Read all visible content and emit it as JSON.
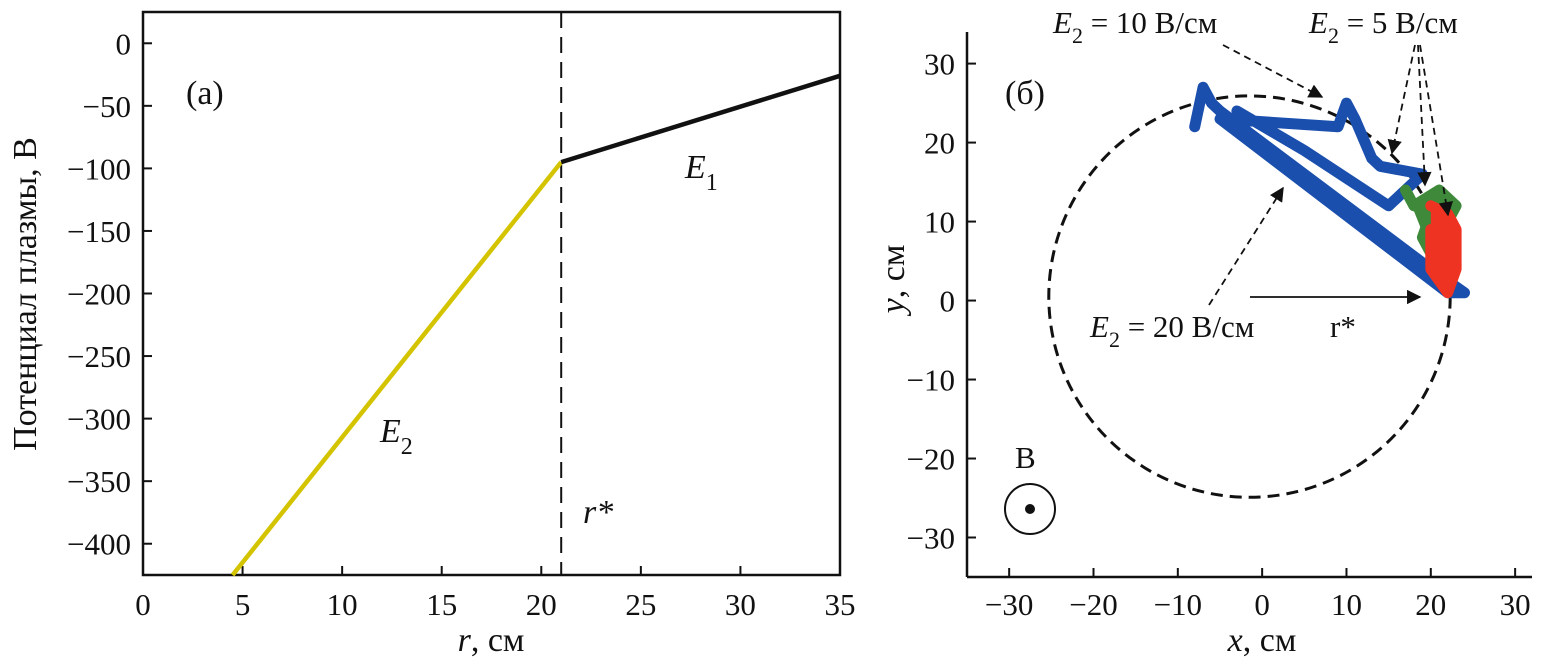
{
  "chart_data": [
    {
      "type": "line",
      "panel_label": "(a)",
      "xlabel_var": "r",
      "xlabel_unit": ", см",
      "ylabel": "Потенциал плазмы, В",
      "xlim": [
        0,
        35
      ],
      "ylim": [
        -425,
        25
      ],
      "xticks": [
        0,
        5,
        10,
        15,
        20,
        25,
        30,
        35
      ],
      "yticks": [
        0,
        -50,
        -100,
        -150,
        -200,
        -250,
        -300,
        -350,
        -400
      ],
      "series": [
        {
          "name": "E2",
          "color": "#d4c400",
          "x": [
            4.5,
            21
          ],
          "y": [
            -425,
            -95
          ]
        },
        {
          "name": "E1",
          "color": "#111111",
          "x": [
            21,
            35
          ],
          "y": [
            -95,
            -26
          ]
        }
      ],
      "vline": {
        "x": 21,
        "label": "r*"
      },
      "label_E1": {
        "base": "E",
        "sub": "1"
      },
      "label_E2": {
        "base": "E",
        "sub": "2"
      }
    },
    {
      "type": "scatter",
      "panel_label": "(б)",
      "xlabel_var": "x",
      "xlabel_unit": ", см",
      "ylabel_var": "y",
      "ylabel_unit": ", см",
      "xlim": [
        -35,
        32
      ],
      "ylim": [
        -35,
        34
      ],
      "xticks": [
        -30,
        -20,
        -10,
        0,
        10,
        20,
        30
      ],
      "yticks": [
        30,
        20,
        10,
        0,
        -10,
        -20,
        -30
      ],
      "circle": {
        "cx": -1.5,
        "cy": 0.5,
        "r": 23.8
      },
      "trajectories": [
        {
          "name": "E2 = 20 В/см",
          "color": "#1a4fae",
          "points": [
            [
              -8,
              22
            ],
            [
              -7,
              27
            ],
            [
              -6,
              25
            ],
            [
              -5,
              24
            ],
            [
              20,
              4
            ],
            [
              24,
              1
            ],
            [
              22,
              1
            ],
            [
              -5,
              23
            ],
            [
              9,
              22
            ],
            [
              10,
              25
            ],
            [
              11,
              23
            ],
            [
              13,
              18
            ],
            [
              14,
              17
            ],
            [
              19,
              16
            ],
            [
              17,
              14
            ],
            [
              15,
              12
            ],
            [
              5,
              19
            ],
            [
              -3,
              24
            ]
          ]
        },
        {
          "name": "E2 = 10 В/см",
          "color": "#3e8a3a",
          "points": [
            [
              17,
              14
            ],
            [
              18,
              12
            ],
            [
              21,
              14
            ],
            [
              23,
              12
            ],
            [
              22,
              10
            ],
            [
              20,
              11
            ],
            [
              19,
              8
            ],
            [
              20,
              6
            ]
          ]
        },
        {
          "name": "E2 = 5 В/см",
          "color": "#ee3322",
          "points": [
            [
              20,
              12
            ],
            [
              22,
              11
            ],
            [
              23,
              9
            ],
            [
              23,
              4
            ],
            [
              22,
              1
            ],
            [
              20,
              4
            ],
            [
              20,
              9
            ]
          ]
        }
      ],
      "annotations": {
        "e10": {
          "base": "E",
          "sub": "2",
          "rest": " = 10 В/см"
        },
        "e5": {
          "base": "E",
          "sub": "2",
          "rest": " = 5 В/см"
        },
        "e20": {
          "base": "E",
          "sub": "2",
          "rest": " = 20 В/см"
        },
        "rstar": "r*",
        "b": "B"
      }
    }
  ]
}
